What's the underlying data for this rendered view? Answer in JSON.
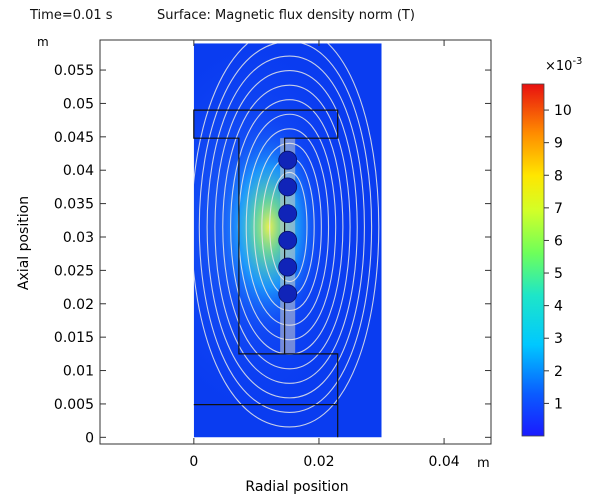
{
  "header": {
    "time_label": "Time=0.01 s",
    "surface_label": "Surface: Magnetic flux density norm (T)"
  },
  "chart_data": {
    "type": "heatmap",
    "title": "Surface: Magnetic flux density norm (T)",
    "xlabel": "Radial position",
    "ylabel": "Axial position",
    "x_unit": "m",
    "y_unit": "m",
    "xlim": [
      -0.015,
      0.0475
    ],
    "ylim": [
      -0.001,
      0.0595
    ],
    "x_ticks": [
      0,
      0.02,
      0.04
    ],
    "x_tick_labels": [
      "0",
      "0.02",
      "0.04"
    ],
    "y_ticks": [
      0,
      0.005,
      0.01,
      0.015,
      0.02,
      0.025,
      0.03,
      0.035,
      0.04,
      0.045,
      0.05,
      0.055
    ],
    "y_tick_labels": [
      "0",
      "0.005",
      "0.01",
      "0.015",
      "0.02",
      "0.025",
      "0.03",
      "0.035",
      "0.04",
      "0.045",
      "0.05",
      "0.055"
    ],
    "domain_x": [
      0,
      0.03
    ],
    "domain_y": [
      0,
      0.059
    ],
    "colorbar": {
      "min": 0,
      "max": 10.8,
      "multiplier": "×10",
      "exponent": "-3",
      "ticks": [
        1,
        2,
        3,
        4,
        5,
        6,
        7,
        8,
        9,
        10
      ],
      "tick_labels": [
        "1",
        "2",
        "3",
        "4",
        "5",
        "6",
        "7",
        "8",
        "9",
        "10"
      ]
    },
    "core_outline": [
      [
        0,
        0.0049
      ],
      [
        0.023,
        0.0049
      ],
      [
        0.023,
        0
      ],
      [
        0.023,
        0.0049
      ],
      [
        0.023,
        0.0125
      ],
      [
        0.0072,
        0.0125
      ],
      [
        0.0072,
        0.0448
      ],
      [
        0,
        0.0448
      ],
      [
        0,
        0.049
      ],
      [
        0.023,
        0.049
      ],
      [
        0.023,
        0.0448
      ],
      [
        0.0145,
        0.0448
      ],
      [
        0.0145,
        0.0125
      ]
    ],
    "coil_region": {
      "x": [
        0.0138,
        0.0162
      ],
      "y": [
        0.0125,
        0.0448
      ]
    },
    "coil_conductors": {
      "r": 0.015,
      "z": [
        0.0415,
        0.0375,
        0.0335,
        0.0295,
        0.0255,
        0.0215
      ],
      "radius": 0.0009
    },
    "grid": false,
    "colormap": "rainbow",
    "background_color": "#0a3cf0",
    "field_line_color": "#e8e8e8"
  }
}
